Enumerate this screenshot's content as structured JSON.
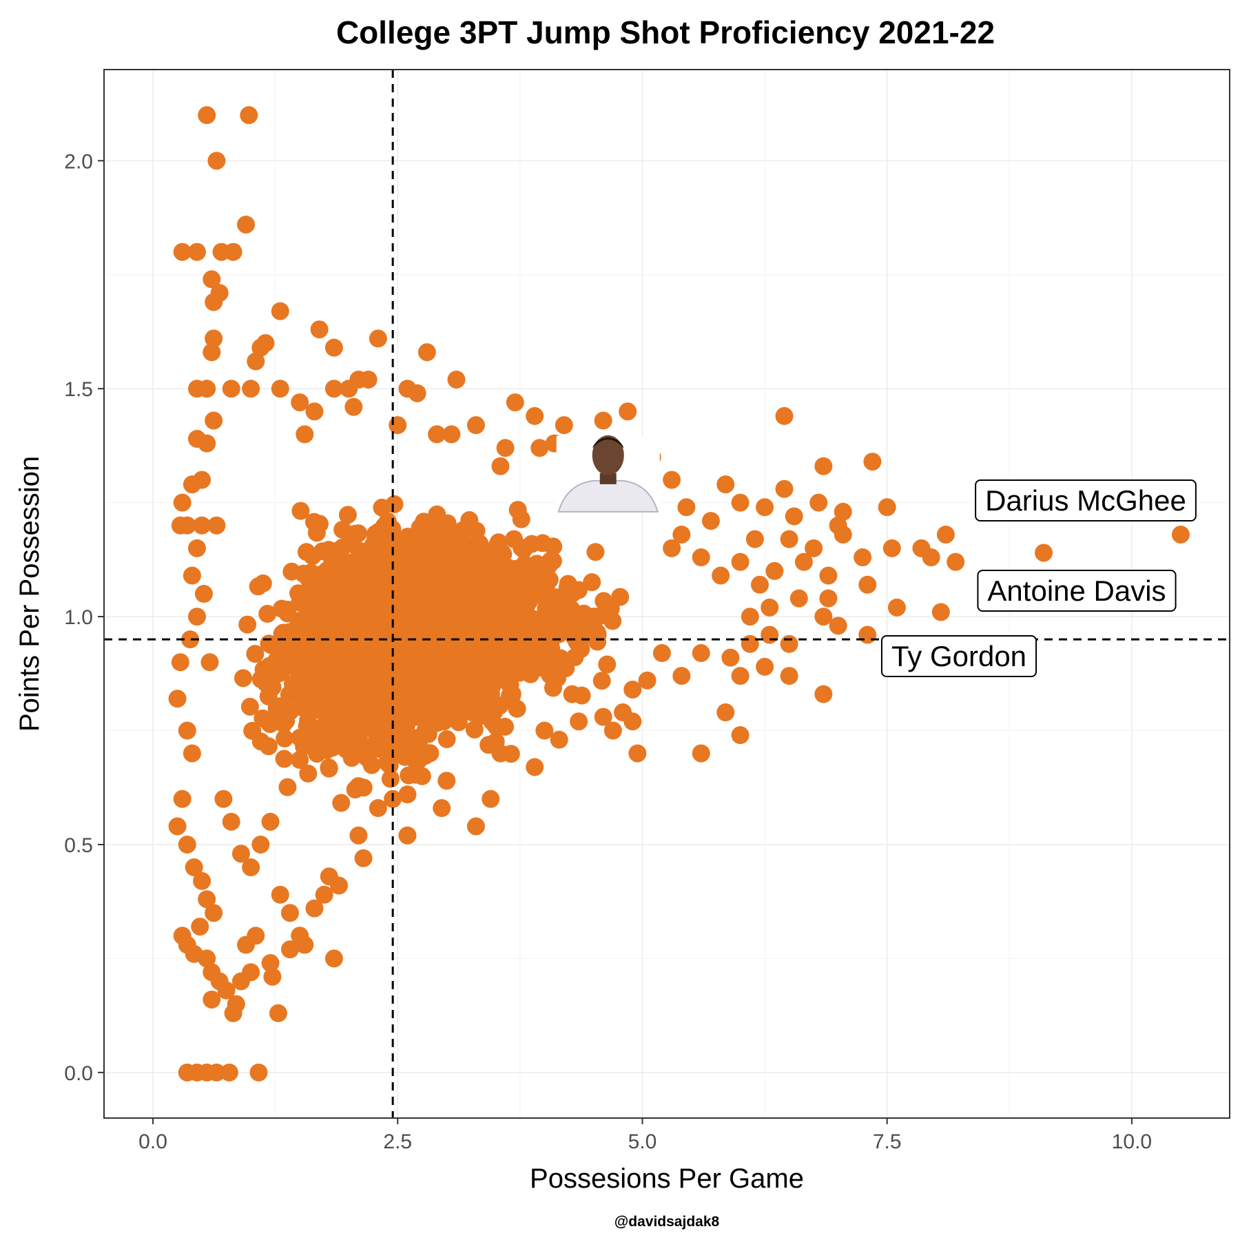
{
  "chart_data": {
    "type": "scatter",
    "title": "College 3PT Jump Shot Proficiency 2021-22",
    "xlabel": "Possesions Per Game",
    "ylabel": "Points Per Possession",
    "credit": "@davidsajdak8",
    "xlim": [
      -0.5,
      11.0
    ],
    "ylim": [
      -0.1,
      2.2
    ],
    "x_ticks": [
      0.0,
      2.5,
      5.0,
      7.5,
      10.0
    ],
    "x_tick_labels": [
      "0.0",
      "2.5",
      "5.0",
      "7.5",
      "10.0"
    ],
    "y_ticks": [
      0.0,
      0.5,
      1.0,
      1.5,
      2.0
    ],
    "y_tick_labels": [
      "0.0",
      "0.5",
      "1.0",
      "1.5",
      "2.0"
    ],
    "grid": true,
    "point_color": "#E87722",
    "reference_lines": {
      "vertical_x": 2.45,
      "horizontal_y": 0.95,
      "style": "dashed",
      "color": "#000000"
    },
    "annotations": [
      {
        "label": "Darius McGhee",
        "x": 10.5,
        "y": 1.18
      },
      {
        "label": "Antoine Davis",
        "x": 9.1,
        "y": 1.14
      },
      {
        "label": "Ty Gordon",
        "x": 7.3,
        "y": 0.96
      }
    ],
    "photo_marker": {
      "x": 4.65,
      "y": 1.23,
      "icon": "player-headshot-icon"
    },
    "dense_cloud_note": "thousands of overlapping points concentrated at x 0.3-5, y 0.1-1.5",
    "points": [
      [
        0.55,
        2.1
      ],
      [
        0.98,
        2.1
      ],
      [
        0.65,
        2.0
      ],
      [
        0.95,
        1.86
      ],
      [
        0.3,
        1.8
      ],
      [
        0.45,
        1.8
      ],
      [
        0.7,
        1.8
      ],
      [
        0.82,
        1.8
      ],
      [
        0.6,
        1.74
      ],
      [
        0.62,
        1.69
      ],
      [
        0.68,
        1.71
      ],
      [
        0.62,
        1.61
      ],
      [
        0.6,
        1.58
      ],
      [
        1.3,
        1.67
      ],
      [
        1.7,
        1.63
      ],
      [
        1.1,
        1.59
      ],
      [
        1.15,
        1.6
      ],
      [
        1.85,
        1.59
      ],
      [
        2.3,
        1.61
      ],
      [
        2.8,
        1.58
      ],
      [
        1.05,
        1.56
      ],
      [
        0.45,
        1.5
      ],
      [
        0.55,
        1.5
      ],
      [
        0.8,
        1.5
      ],
      [
        1.0,
        1.5
      ],
      [
        1.3,
        1.5
      ],
      [
        1.85,
        1.5
      ],
      [
        2.0,
        1.5
      ],
      [
        2.1,
        1.52
      ],
      [
        2.2,
        1.52
      ],
      [
        2.6,
        1.5
      ],
      [
        2.7,
        1.49
      ],
      [
        3.1,
        1.52
      ],
      [
        1.5,
        1.47
      ],
      [
        1.65,
        1.45
      ],
      [
        2.05,
        1.46
      ],
      [
        3.7,
        1.47
      ],
      [
        3.9,
        1.44
      ],
      [
        4.2,
        1.42
      ],
      [
        4.6,
        1.43
      ],
      [
        4.85,
        1.45
      ],
      [
        6.45,
        1.44
      ],
      [
        0.62,
        1.43
      ],
      [
        1.55,
        1.4
      ],
      [
        2.5,
        1.42
      ],
      [
        3.3,
        1.42
      ],
      [
        2.9,
        1.4
      ],
      [
        3.05,
        1.4
      ],
      [
        4.1,
        1.38
      ],
      [
        4.5,
        1.37
      ],
      [
        4.75,
        1.36
      ],
      [
        0.45,
        1.39
      ],
      [
        0.55,
        1.38
      ],
      [
        3.6,
        1.37
      ],
      [
        3.95,
        1.37
      ],
      [
        5.1,
        1.35
      ],
      [
        7.35,
        1.34
      ],
      [
        6.85,
        1.33
      ],
      [
        4.35,
        1.34
      ],
      [
        3.55,
        1.33
      ],
      [
        0.4,
        1.29
      ],
      [
        0.5,
        1.3
      ],
      [
        5.3,
        1.3
      ],
      [
        5.85,
        1.29
      ],
      [
        6.45,
        1.28
      ],
      [
        7.05,
        1.23
      ],
      [
        7.5,
        1.24
      ],
      [
        6.25,
        1.24
      ],
      [
        5.45,
        1.24
      ],
      [
        6.0,
        1.25
      ],
      [
        6.8,
        1.25
      ],
      [
        6.55,
        1.22
      ],
      [
        0.3,
        1.25
      ],
      [
        0.28,
        1.2
      ],
      [
        0.35,
        1.2
      ],
      [
        0.5,
        1.2
      ],
      [
        0.65,
        1.2
      ],
      [
        7.0,
        1.2
      ],
      [
        5.7,
        1.21
      ],
      [
        5.4,
        1.18
      ],
      [
        6.15,
        1.17
      ],
      [
        6.5,
        1.17
      ],
      [
        7.05,
        1.18
      ],
      [
        8.1,
        1.18
      ],
      [
        7.85,
        1.15
      ],
      [
        7.55,
        1.15
      ],
      [
        7.25,
        1.13
      ],
      [
        7.95,
        1.13
      ],
      [
        8.2,
        1.12
      ],
      [
        9.1,
        1.14
      ],
      [
        10.5,
        1.18
      ],
      [
        6.75,
        1.15
      ],
      [
        5.3,
        1.15
      ],
      [
        5.6,
        1.13
      ],
      [
        6.0,
        1.12
      ],
      [
        6.35,
        1.1
      ],
      [
        6.65,
        1.12
      ],
      [
        5.8,
        1.09
      ],
      [
        6.2,
        1.07
      ],
      [
        6.9,
        1.09
      ],
      [
        7.3,
        1.07
      ],
      [
        6.6,
        1.04
      ],
      [
        6.9,
        1.04
      ],
      [
        7.6,
        1.02
      ],
      [
        8.05,
        1.01
      ],
      [
        6.3,
        1.02
      ],
      [
        6.1,
        1.0
      ],
      [
        6.85,
        1.0
      ],
      [
        7.0,
        0.98
      ],
      [
        6.3,
        0.96
      ],
      [
        6.5,
        0.94
      ],
      [
        7.3,
        0.96
      ],
      [
        6.1,
        0.94
      ],
      [
        5.9,
        0.91
      ],
      [
        5.6,
        0.92
      ],
      [
        5.2,
        0.92
      ],
      [
        6.25,
        0.89
      ],
      [
        6.0,
        0.87
      ],
      [
        6.5,
        0.87
      ],
      [
        6.85,
        0.83
      ],
      [
        5.4,
        0.87
      ],
      [
        5.05,
        0.86
      ],
      [
        4.9,
        0.84
      ],
      [
        5.85,
        0.79
      ],
      [
        4.8,
        0.79
      ],
      [
        4.6,
        0.78
      ],
      [
        4.35,
        0.77
      ],
      [
        4.0,
        0.75
      ],
      [
        4.15,
        0.73
      ],
      [
        4.9,
        0.77
      ],
      [
        4.7,
        0.75
      ],
      [
        6.0,
        0.74
      ],
      [
        5.6,
        0.7
      ],
      [
        4.95,
        0.7
      ],
      [
        3.55,
        0.7
      ],
      [
        3.9,
        0.67
      ],
      [
        3.45,
        0.6
      ],
      [
        3.0,
        0.64
      ],
      [
        2.95,
        0.58
      ],
      [
        3.3,
        0.54
      ],
      [
        2.75,
        0.65
      ],
      [
        2.6,
        0.61
      ],
      [
        2.45,
        0.6
      ],
      [
        2.6,
        0.52
      ],
      [
        2.3,
        0.58
      ],
      [
        2.1,
        0.52
      ],
      [
        2.15,
        0.47
      ],
      [
        1.8,
        0.43
      ],
      [
        1.9,
        0.41
      ],
      [
        1.75,
        0.39
      ],
      [
        1.65,
        0.36
      ],
      [
        1.5,
        0.3
      ],
      [
        1.55,
        0.28
      ],
      [
        1.3,
        0.39
      ],
      [
        1.4,
        0.35
      ],
      [
        1.4,
        0.27
      ],
      [
        1.2,
        0.24
      ],
      [
        1.22,
        0.21
      ],
      [
        1.28,
        0.13
      ],
      [
        1.85,
        0.25
      ],
      [
        0.3,
        0.3
      ],
      [
        0.35,
        0.28
      ],
      [
        0.42,
        0.26
      ],
      [
        0.55,
        0.25
      ],
      [
        0.6,
        0.22
      ],
      [
        0.68,
        0.2
      ],
      [
        0.75,
        0.18
      ],
      [
        0.6,
        0.16
      ],
      [
        0.82,
        0.13
      ],
      [
        0.85,
        0.15
      ],
      [
        0.9,
        0.2
      ],
      [
        1.0,
        0.22
      ],
      [
        0.95,
        0.28
      ],
      [
        1.05,
        0.3
      ],
      [
        0.35,
        0.0
      ],
      [
        0.45,
        0.0
      ],
      [
        0.55,
        0.0
      ],
      [
        0.65,
        0.0
      ],
      [
        0.78,
        0.0
      ],
      [
        1.08,
        0.0
      ],
      [
        0.25,
        0.54
      ],
      [
        0.3,
        0.6
      ],
      [
        0.25,
        0.82
      ],
      [
        0.28,
        0.9
      ],
      [
        0.35,
        0.75
      ],
      [
        0.4,
        0.7
      ],
      [
        0.35,
        0.5
      ],
      [
        0.42,
        0.45
      ],
      [
        0.5,
        0.42
      ],
      [
        0.55,
        0.38
      ],
      [
        0.62,
        0.35
      ],
      [
        0.48,
        0.32
      ],
      [
        0.38,
        0.95
      ],
      [
        0.45,
        1.0
      ],
      [
        0.52,
        1.05
      ],
      [
        0.4,
        1.09
      ],
      [
        0.45,
        1.15
      ],
      [
        0.58,
        0.9
      ],
      [
        0.72,
        0.6
      ],
      [
        0.8,
        0.55
      ],
      [
        0.9,
        0.48
      ],
      [
        1.0,
        0.45
      ],
      [
        1.1,
        0.5
      ],
      [
        1.2,
        0.55
      ]
    ]
  }
}
